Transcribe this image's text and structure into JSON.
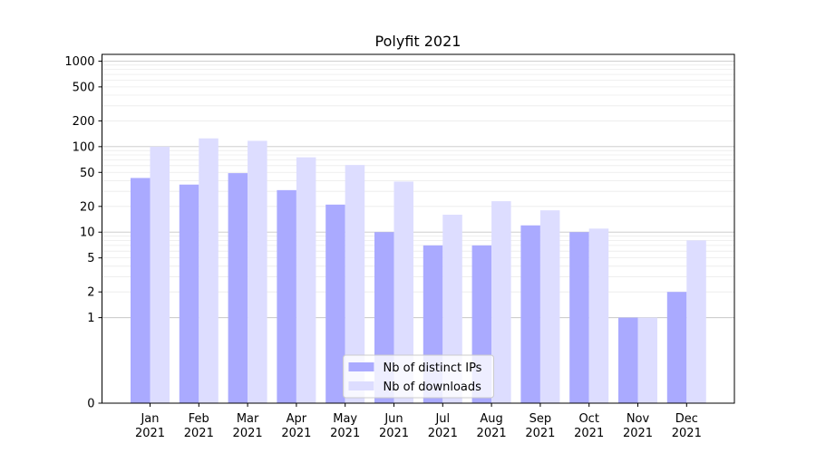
{
  "chart_data": {
    "type": "bar",
    "title": "Polyfit 2021",
    "xlabel": "",
    "ylabel": "",
    "categories": [
      [
        "Jan",
        "2021"
      ],
      [
        "Feb",
        "2021"
      ],
      [
        "Mar",
        "2021"
      ],
      [
        "Apr",
        "2021"
      ],
      [
        "May",
        "2021"
      ],
      [
        "Jun",
        "2021"
      ],
      [
        "Jul",
        "2021"
      ],
      [
        "Aug",
        "2021"
      ],
      [
        "Sep",
        "2021"
      ],
      [
        "Oct",
        "2021"
      ],
      [
        "Nov",
        "2021"
      ],
      [
        "Dec",
        "2021"
      ]
    ],
    "series": [
      {
        "name": "Nb of distinct IPs",
        "color": "#aaaaff",
        "values": [
          43,
          36,
          49,
          31,
          21,
          10,
          7,
          7,
          12,
          10,
          1,
          2
        ]
      },
      {
        "name": "Nb of downloads",
        "color": "#ddddff",
        "values": [
          100,
          125,
          117,
          75,
          61,
          39,
          16,
          23,
          18,
          11,
          1,
          8
        ]
      }
    ],
    "yscale": "symlog",
    "ylim": [
      0,
      1200
    ],
    "yticks": [
      0,
      1,
      2,
      5,
      10,
      20,
      50,
      100,
      200,
      500,
      1000
    ],
    "ytick_labels": [
      "0",
      "1",
      "2",
      "5",
      "10",
      "20",
      "50",
      "100",
      "200",
      "500",
      "1000"
    ],
    "grid": true,
    "legend_position": "lower-center"
  }
}
